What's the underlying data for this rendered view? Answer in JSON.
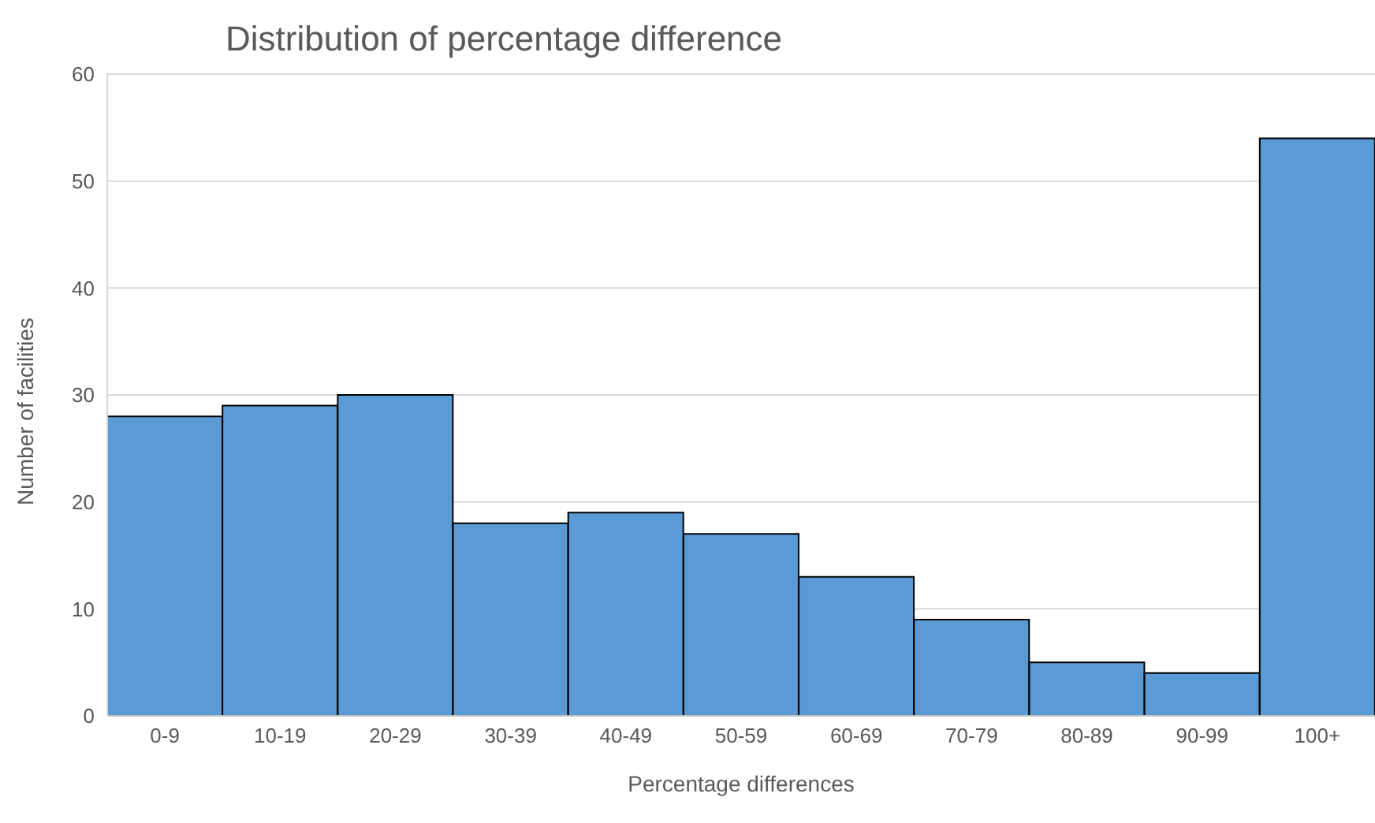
{
  "chart_data": {
    "type": "bar",
    "title": "Distribution of percentage difference",
    "xlabel": "Percentage differences",
    "ylabel": "Number of facilities",
    "categories": [
      "0-9",
      "10-19",
      "20-29",
      "30-39",
      "40-49",
      "50-59",
      "60-69",
      "70-79",
      "80-89",
      "90-99",
      "100+"
    ],
    "values": [
      28,
      29,
      30,
      18,
      19,
      17,
      13,
      9,
      5,
      4,
      54
    ],
    "color": "#5b9bd5",
    "ylim": [
      0,
      60
    ],
    "yticks": [
      0,
      10,
      20,
      30,
      40,
      50,
      60
    ],
    "grid": "y"
  }
}
